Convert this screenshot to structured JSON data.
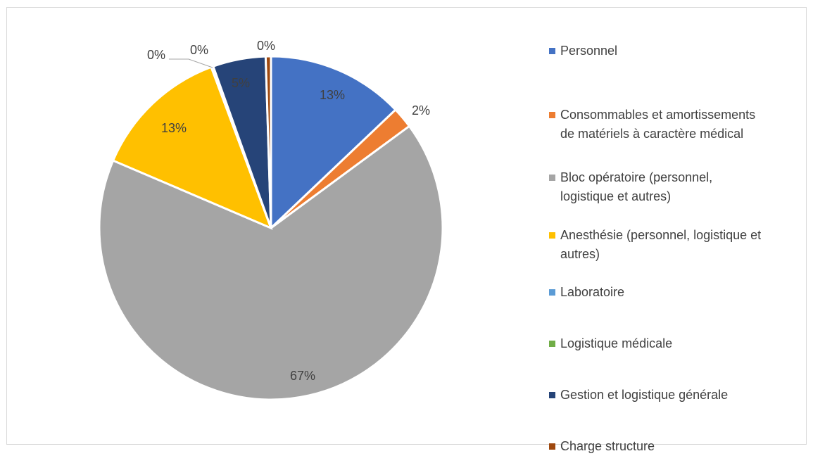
{
  "chart_data": {
    "type": "pie",
    "title": "",
    "legend_position": "right",
    "slices": [
      {
        "name": "Personnel",
        "value": 13,
        "label": "13%",
        "color": "#4472C4"
      },
      {
        "name": "Consommables et amortissements de matériels à caractère médical",
        "value": 2,
        "label": "2%",
        "color": "#ED7D31"
      },
      {
        "name": "Bloc opératoire (personnel, logistique et autres)",
        "value": 67,
        "label": "67%",
        "color": "#A5A5A5"
      },
      {
        "name": "Anesthésie (personnel, logistique et autres)",
        "value": 13,
        "label": "13%",
        "color": "#FFC000"
      },
      {
        "name": "Laboratoire",
        "value": 0.1,
        "label": "0%",
        "color": "#5B9BD5"
      },
      {
        "name": "Logistique médicale",
        "value": 0.1,
        "label": "0%",
        "color": "#70AD47"
      },
      {
        "name": "Gestion et logistique générale",
        "value": 5,
        "label": "5%",
        "color": "#264478"
      },
      {
        "name": "Charge structure",
        "value": 0.5,
        "label": "0%",
        "color": "#9E480E"
      }
    ]
  },
  "legend": {
    "items": [
      {
        "lines": [
          "Personnel"
        ],
        "color": "#4472C4"
      },
      {
        "lines": [
          "Consommables et amortissements",
          "de matériels à caractère médical"
        ],
        "color": "#ED7D31"
      },
      {
        "lines": [
          "Bloc opératoire (personnel,",
          "logistique et autres)"
        ],
        "color": "#A5A5A5"
      },
      {
        "lines": [
          "Anesthésie (personnel, logistique et",
          "autres)"
        ],
        "color": "#FFC000"
      },
      {
        "lines": [
          "Laboratoire"
        ],
        "color": "#5B9BD5"
      },
      {
        "lines": [
          "Logistique médicale"
        ],
        "color": "#70AD47"
      },
      {
        "lines": [
          "Gestion et logistique générale"
        ],
        "color": "#264478"
      },
      {
        "lines": [
          "Charge structure"
        ],
        "color": "#9E480E"
      }
    ]
  }
}
